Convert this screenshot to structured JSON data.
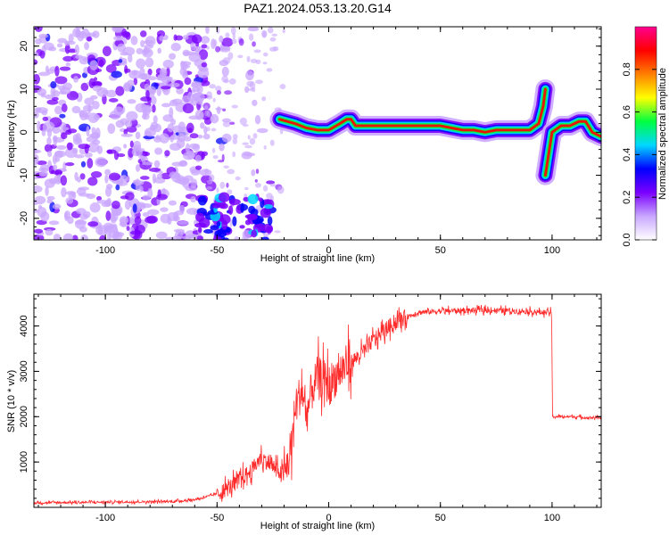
{
  "title": "PAZ1.2024.053.13.20.G14",
  "chart_data": [
    {
      "type": "heatmap",
      "xlabel": "Height of straight line (km)",
      "ylabel": "Frequency (Hz)",
      "xlim": [
        -132,
        122
      ],
      "ylim": [
        -25,
        24.5
      ],
      "x_ticks": [
        -100,
        -50,
        0,
        50,
        100
      ],
      "y_ticks": [
        -20,
        -10,
        0,
        10,
        20
      ],
      "colorbar": {
        "label": "Normalized spectral amplitude",
        "range": [
          0,
          1
        ],
        "ticks": [
          0.0,
          0.2,
          0.4,
          0.6,
          0.8
        ],
        "colors": [
          "#ffffff",
          "#c9a7ff",
          "#7a00ff",
          "#0000ff",
          "#00d8ff",
          "#00ff40",
          "#ffff00",
          "#ff7f00",
          "#ff0000",
          "#ff0090"
        ]
      },
      "ridge": {
        "description_points_x": [
          -22,
          -15,
          -10,
          -5,
          0,
          5,
          8,
          10,
          12,
          20,
          30,
          40,
          50,
          55,
          60,
          65,
          70,
          75,
          80,
          85,
          90,
          94,
          96,
          97
        ],
        "description_points_y": [
          3,
          2,
          1,
          0.5,
          0.5,
          2,
          3,
          3,
          1.5,
          1.5,
          1.5,
          1.5,
          1.5,
          1,
          0.5,
          0.5,
          0,
          0.5,
          0.5,
          0.5,
          0.5,
          2,
          6,
          10
        ]
      },
      "ridge_after_jump": {
        "x": [
          97,
          100,
          104,
          108,
          112,
          115,
          118,
          122
        ],
        "y": [
          -10,
          0,
          1.5,
          1.5,
          2.5,
          2.5,
          0,
          -1
        ]
      }
    },
    {
      "type": "line",
      "xlabel": "Height of straight line (km)",
      "ylabel": "SNR (10 * v/v)",
      "xlim": [
        -132,
        122
      ],
      "ylim": [
        0,
        4700
      ],
      "x_ticks": [
        -100,
        -50,
        0,
        50,
        100
      ],
      "y_ticks": [
        1000,
        2000,
        3000,
        4000
      ],
      "line_color": "#ff2a2a",
      "series": [
        {
          "x": [
            -132,
            -110,
            -90,
            -70,
            -60,
            -55,
            -50,
            -45,
            -40,
            -35,
            -30,
            -25,
            -20,
            -17,
            -15,
            -12,
            -10,
            -8,
            -5,
            -2,
            0,
            5,
            10,
            15,
            20,
            25,
            30,
            35,
            40,
            50,
            60,
            70,
            80,
            90,
            95,
            99.8,
            100.2,
            105,
            110,
            115,
            122
          ],
          "y": [
            100,
            110,
            120,
            130,
            170,
            230,
            300,
            420,
            600,
            800,
            1100,
            900,
            700,
            1200,
            2200,
            2600,
            2000,
            2500,
            2900,
            2800,
            2700,
            3000,
            3200,
            3400,
            3700,
            3900,
            4100,
            4200,
            4300,
            4330,
            4340,
            4350,
            4340,
            4320,
            4300,
            4300,
            2000,
            2000,
            2000,
            1980,
            1980
          ]
        }
      ]
    }
  ]
}
